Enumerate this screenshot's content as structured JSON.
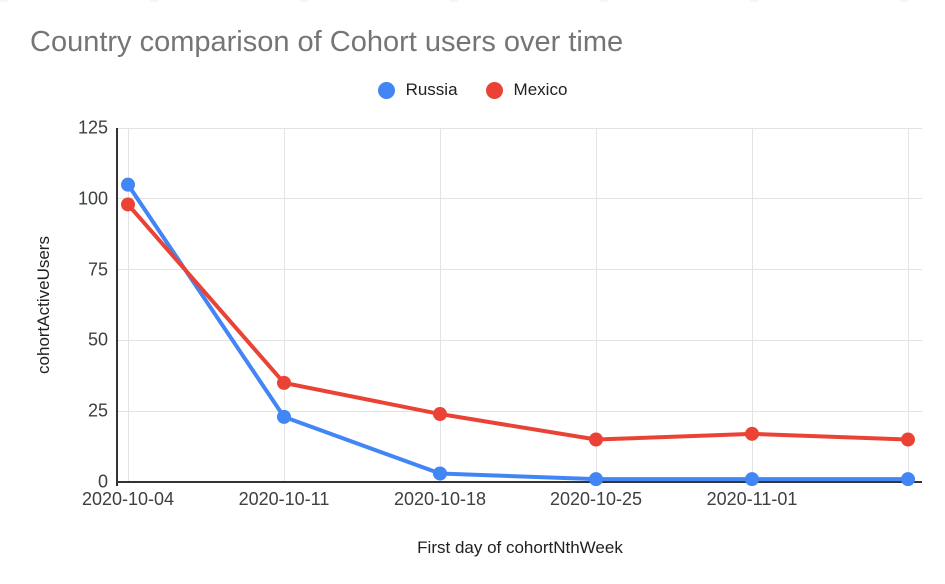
{
  "chart_data": {
    "type": "line",
    "title": "Country comparison of Cohort users over time",
    "xlabel": "First day of cohortNthWeek",
    "ylabel": "cohortActiveUsers",
    "categories": [
      "2020-10-04",
      "2020-10-11",
      "2020-10-18",
      "2020-10-25",
      "2020-11-01",
      ""
    ],
    "series": [
      {
        "name": "Russia",
        "color": "#4285F4",
        "values": [
          105,
          23,
          3,
          1,
          1,
          1
        ]
      },
      {
        "name": "Mexico",
        "color": "#EA4335",
        "values": [
          98,
          35,
          24,
          15,
          17,
          15
        ]
      }
    ],
    "ylim": [
      0,
      125
    ],
    "y_ticks_topdown": [
      "125",
      "100",
      "75",
      "50",
      "25",
      "0"
    ],
    "grid": true,
    "legend_position": "top",
    "colors": {
      "title_text": "#757575",
      "tick_text": "#3c4043",
      "axis_line": "#333333",
      "gridline": "#e3e3e3",
      "background": "#ffffff"
    }
  }
}
